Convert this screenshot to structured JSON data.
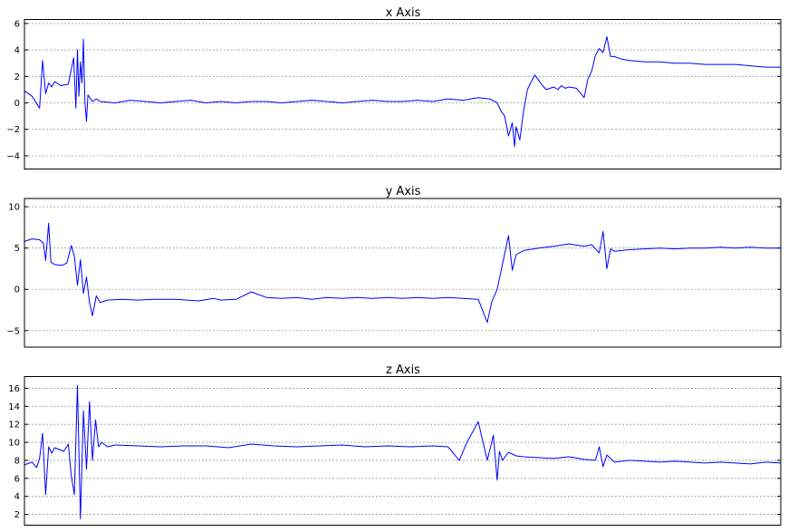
{
  "colors": {
    "line": "#0000ff",
    "grid": "#9a9a9a",
    "axes": "#000000",
    "background": "#ffffff"
  },
  "chart_data": [
    {
      "type": "line",
      "title": "x Axis",
      "xlabel": "",
      "ylabel": "",
      "x_ticks_visible": false,
      "xlim": [
        0,
        1000
      ],
      "ylim": [
        -5,
        6.3
      ],
      "yticks": [
        -4,
        -2,
        0,
        2,
        4,
        6
      ],
      "grid": "y-dashed",
      "series": [
        {
          "x": [
            0,
            10,
            20,
            24,
            28,
            32,
            36,
            40,
            48,
            58,
            65,
            68,
            70,
            72,
            74,
            76,
            78,
            80,
            82,
            84,
            90,
            95,
            100,
            120,
            140,
            160,
            180,
            200,
            220,
            240,
            260,
            280,
            300,
            320,
            340,
            360,
            380,
            400,
            420,
            440,
            460,
            480,
            500,
            520,
            540,
            560,
            580,
            600,
            615,
            625,
            630,
            635,
            640,
            645,
            648,
            650,
            655,
            660,
            665,
            670,
            675,
            680,
            685,
            690,
            695,
            700,
            705,
            710,
            715,
            720,
            730,
            740,
            745,
            750,
            755,
            760,
            765,
            770,
            775,
            780,
            790,
            800,
            820,
            840,
            860,
            880,
            900,
            920,
            940,
            960,
            980,
            1000
          ],
          "y": [
            0.9,
            0.5,
            -0.4,
            3.2,
            0.7,
            1.5,
            1.2,
            1.6,
            1.3,
            1.4,
            3.4,
            -0.4,
            4.0,
            0.5,
            3.1,
            1.5,
            4.8,
            0.0,
            -1.4,
            0.6,
            0.1,
            0.3,
            0.1,
            0.0,
            0.2,
            0.1,
            0.0,
            0.1,
            0.2,
            0.0,
            0.1,
            0.0,
            0.1,
            0.1,
            0.0,
            0.1,
            0.2,
            0.1,
            0.0,
            0.1,
            0.2,
            0.1,
            0.1,
            0.2,
            0.1,
            0.3,
            0.2,
            0.4,
            0.3,
            0.0,
            -0.6,
            -1.0,
            -2.5,
            -1.5,
            -3.3,
            -1.8,
            -2.8,
            -0.6,
            1.0,
            1.6,
            2.1,
            1.7,
            1.3,
            1.0,
            1.1,
            1.2,
            1.0,
            1.3,
            1.1,
            1.2,
            1.1,
            0.4,
            1.8,
            2.4,
            3.6,
            4.1,
            3.8,
            5.0,
            3.5,
            3.5,
            3.3,
            3.2,
            3.1,
            3.1,
            3.0,
            3.0,
            2.9,
            2.9,
            2.9,
            2.8,
            2.7,
            2.7
          ]
        }
      ]
    },
    {
      "type": "line",
      "title": "y Axis",
      "xlabel": "",
      "ylabel": "",
      "x_ticks_visible": false,
      "xlim": [
        0,
        1000
      ],
      "ylim": [
        -7,
        11
      ],
      "yticks": [
        -5,
        0,
        5,
        10
      ],
      "grid": "y-dashed",
      "series": [
        {
          "x": [
            0,
            10,
            20,
            25,
            28,
            32,
            35,
            40,
            50,
            56,
            62,
            66,
            70,
            74,
            78,
            82,
            86,
            90,
            95,
            100,
            110,
            130,
            150,
            170,
            200,
            230,
            250,
            260,
            280,
            300,
            320,
            340,
            360,
            380,
            400,
            420,
            440,
            460,
            480,
            500,
            520,
            540,
            560,
            580,
            600,
            612,
            618,
            625,
            632,
            640,
            645,
            650,
            660,
            680,
            700,
            720,
            740,
            750,
            760,
            765,
            770,
            775,
            780,
            800,
            820,
            840,
            860,
            880,
            900,
            920,
            940,
            960,
            980,
            1000
          ],
          "y": [
            5.8,
            6.1,
            6.0,
            5.6,
            3.5,
            8.0,
            3.3,
            3.0,
            2.9,
            3.2,
            5.3,
            4.0,
            0.5,
            3.6,
            -0.5,
            1.5,
            -1.6,
            -3.2,
            -0.8,
            -1.6,
            -1.3,
            -1.2,
            -1.3,
            -1.2,
            -1.2,
            -1.4,
            -1.1,
            -1.3,
            -1.2,
            -0.3,
            -1.0,
            -1.1,
            -1.0,
            -1.2,
            -1.0,
            -1.1,
            -1.0,
            -1.1,
            -1.0,
            -1.1,
            -1.0,
            -1.1,
            -1.0,
            -1.1,
            -1.2,
            -4.0,
            -1.5,
            0.0,
            3.0,
            6.5,
            2.3,
            4.2,
            4.7,
            5.0,
            5.2,
            5.5,
            5.2,
            5.4,
            4.4,
            7.0,
            2.5,
            4.9,
            4.6,
            4.8,
            4.9,
            5.0,
            4.9,
            5.0,
            5.0,
            5.1,
            5.0,
            5.1,
            5.0,
            5.0
          ]
        }
      ]
    },
    {
      "type": "line",
      "title": "z Axis",
      "xlabel": "",
      "ylabel": "",
      "x_ticks_visible": false,
      "xlim": [
        0,
        1000
      ],
      "ylim": [
        0.8,
        17.3
      ],
      "yticks": [
        2,
        4,
        6,
        8,
        10,
        12,
        14,
        16
      ],
      "grid": "y-dashed",
      "series": [
        {
          "x": [
            0,
            10,
            16,
            20,
            24,
            28,
            32,
            36,
            40,
            46,
            52,
            58,
            62,
            66,
            70,
            74,
            78,
            82,
            86,
            90,
            94,
            98,
            102,
            110,
            120,
            150,
            180,
            210,
            240,
            270,
            300,
            330,
            360,
            390,
            420,
            450,
            480,
            510,
            540,
            560,
            575,
            585,
            600,
            612,
            620,
            625,
            628,
            632,
            640,
            650,
            660,
            680,
            700,
            720,
            740,
            755,
            760,
            765,
            770,
            780,
            800,
            820,
            840,
            860,
            880,
            900,
            920,
            940,
            960,
            980,
            1000
          ],
          "y": [
            7.5,
            7.8,
            7.2,
            8.2,
            11.0,
            4.2,
            9.5,
            8.8,
            9.4,
            9.2,
            9.0,
            9.8,
            6.2,
            4.2,
            16.3,
            1.5,
            13.5,
            7.0,
            14.5,
            8.0,
            12.5,
            9.5,
            10.0,
            9.5,
            9.7,
            9.6,
            9.5,
            9.6,
            9.6,
            9.4,
            9.8,
            9.6,
            9.5,
            9.6,
            9.7,
            9.5,
            9.6,
            9.5,
            9.6,
            9.5,
            8.0,
            10.0,
            12.3,
            8.0,
            10.8,
            5.8,
            9.0,
            8.0,
            8.9,
            8.5,
            8.4,
            8.3,
            8.2,
            8.4,
            8.1,
            8.0,
            9.5,
            7.3,
            8.6,
            7.8,
            8.0,
            7.9,
            7.8,
            7.9,
            7.8,
            7.7,
            7.8,
            7.7,
            7.6,
            7.8,
            7.7
          ]
        }
      ]
    }
  ]
}
